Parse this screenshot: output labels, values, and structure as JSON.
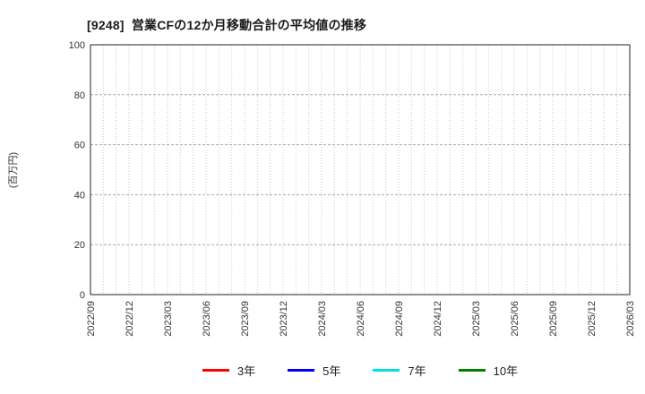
{
  "chart_data": {
    "type": "line",
    "title": "[9248]  営業CFの12か月移動合計の平均値の推移",
    "ylabel": "(百万円)",
    "xlabel": "",
    "ylim": [
      0,
      100
    ],
    "yticks": [
      0,
      20,
      40,
      60,
      80,
      100
    ],
    "categories": [
      "2022/09",
      "2022/12",
      "2023/03",
      "2023/06",
      "2023/09",
      "2023/12",
      "2024/03",
      "2024/06",
      "2024/09",
      "2024/12",
      "2025/03",
      "2025/06",
      "2025/09",
      "2025/12",
      "2026/03"
    ],
    "minor_vertical_divisions_per_interval": 3,
    "grid": true,
    "legend_position": "bottom",
    "series": [
      {
        "name": "3年",
        "color": "#ff0000",
        "values": []
      },
      {
        "name": "5年",
        "color": "#0000ff",
        "values": []
      },
      {
        "name": "7年",
        "color": "#00e0e8",
        "values": []
      },
      {
        "name": "10年",
        "color": "#008000",
        "values": []
      }
    ],
    "colors": {
      "axis_border": "#222222",
      "minor_grid": "#c6c6c6",
      "major_grid": "#a9a9a9",
      "tick_label": "#333333"
    }
  }
}
